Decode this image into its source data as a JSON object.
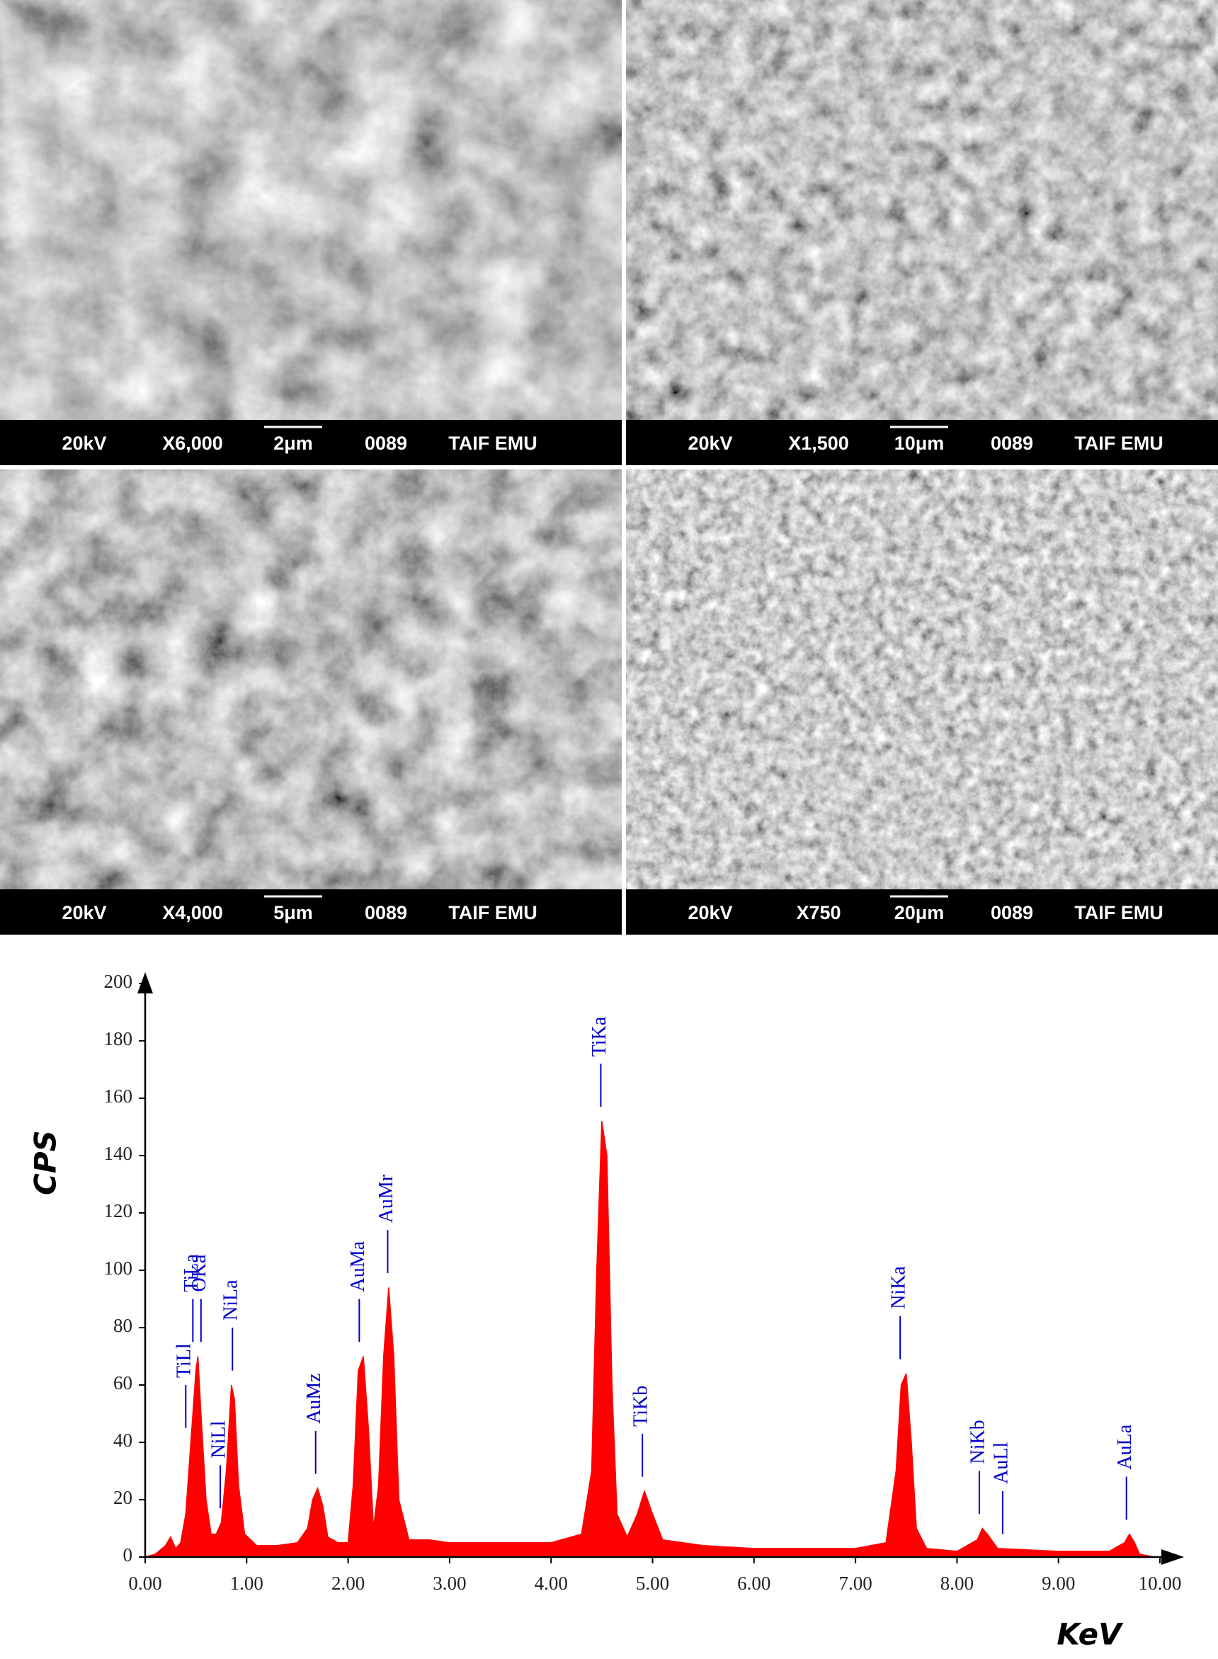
{
  "panels": [
    {
      "voltage": "20kV",
      "magnification": "X6,000",
      "scale": "2μm",
      "code": "0089",
      "lab": "TAIF EMU"
    },
    {
      "voltage": "20kV",
      "magnification": "X1,500",
      "scale": "10μm",
      "code": "0089",
      "lab": "TAIF EMU"
    },
    {
      "voltage": "20kV",
      "magnification": "X4,000",
      "scale": "5μm",
      "code": "0089",
      "lab": "TAIF EMU"
    },
    {
      "voltage": "20kV",
      "magnification": "X750",
      "scale": "20μm",
      "code": "0089",
      "lab": "TAIF EMU"
    }
  ],
  "chart_data": {
    "type": "area",
    "x_label": "KeV",
    "y_label": "CPS",
    "x": [
      0.0,
      0.1,
      0.2,
      0.25,
      0.3,
      0.35,
      0.4,
      0.45,
      0.5,
      0.52,
      0.55,
      0.6,
      0.65,
      0.7,
      0.75,
      0.8,
      0.85,
      0.88,
      0.92,
      0.98,
      1.1,
      1.3,
      1.5,
      1.6,
      1.65,
      1.7,
      1.75,
      1.8,
      1.9,
      2.0,
      2.05,
      2.1,
      2.15,
      2.2,
      2.25,
      2.3,
      2.35,
      2.4,
      2.45,
      2.5,
      2.6,
      2.8,
      3.0,
      3.5,
      4.0,
      4.3,
      4.4,
      4.45,
      4.5,
      4.55,
      4.6,
      4.65,
      4.75,
      4.85,
      4.92,
      5.0,
      5.1,
      5.5,
      6.0,
      6.5,
      7.0,
      7.3,
      7.4,
      7.45,
      7.5,
      7.55,
      7.6,
      7.7,
      8.0,
      8.2,
      8.25,
      8.3,
      8.4,
      9.0,
      9.5,
      9.65,
      9.7,
      9.75,
      9.8,
      9.95
    ],
    "series": [
      {
        "color": "#ff0000",
        "values": [
          0,
          1,
          4,
          7,
          3,
          5,
          15,
          40,
          65,
          70,
          50,
          20,
          8,
          8,
          12,
          30,
          60,
          55,
          25,
          8,
          4,
          4,
          5,
          10,
          20,
          24,
          18,
          7,
          5,
          5,
          25,
          65,
          70,
          45,
          10,
          25,
          70,
          94,
          70,
          20,
          6,
          6,
          5,
          5,
          5,
          8,
          30,
          100,
          152,
          140,
          60,
          15,
          7,
          15,
          23,
          15,
          6,
          4,
          3,
          3,
          3,
          5,
          30,
          60,
          64,
          40,
          10,
          3,
          2,
          6,
          10,
          8,
          3,
          2,
          2,
          5,
          8,
          5,
          1,
          0
        ]
      }
    ],
    "xlim": [
      0,
      10
    ],
    "ylim": [
      0,
      200
    ],
    "xticks": [
      {
        "value": 0,
        "label": "0.00"
      },
      {
        "value": 1,
        "label": "1.00"
      },
      {
        "value": 2,
        "label": "2.00"
      },
      {
        "value": 3,
        "label": "3.00"
      },
      {
        "value": 4,
        "label": "4.00"
      },
      {
        "value": 5,
        "label": "5.00"
      },
      {
        "value": 6,
        "label": "6.00"
      },
      {
        "value": 7,
        "label": "7.00"
      },
      {
        "value": 8,
        "label": "8.00"
      },
      {
        "value": 9,
        "label": "9.00"
      },
      {
        "value": 10,
        "label": "10.00"
      }
    ],
    "yticks": [
      0,
      20,
      40,
      60,
      80,
      100,
      120,
      140,
      160,
      180,
      200
    ],
    "annotation_color": "#0000cc",
    "annotations": [
      {
        "text": "TiLl",
        "x": 0.4
      },
      {
        "text": "TiLa",
        "x": 0.47
      },
      {
        "text": "OKa",
        "x": 0.55
      },
      {
        "text": "NiLl",
        "x": 0.74
      },
      {
        "text": "NiLa",
        "x": 0.86
      },
      {
        "text": "AuMz",
        "x": 1.68
      },
      {
        "text": "AuMa",
        "x": 2.11
      },
      {
        "text": "AuMr",
        "x": 2.39
      },
      {
        "text": "TiKa",
        "x": 4.49
      },
      {
        "text": "TiKb",
        "x": 4.9
      },
      {
        "text": "NiKa",
        "x": 7.44
      },
      {
        "text": "NiKb",
        "x": 8.22
      },
      {
        "text": "AuLl",
        "x": 8.45
      },
      {
        "text": "AuLa",
        "x": 9.67
      }
    ]
  }
}
